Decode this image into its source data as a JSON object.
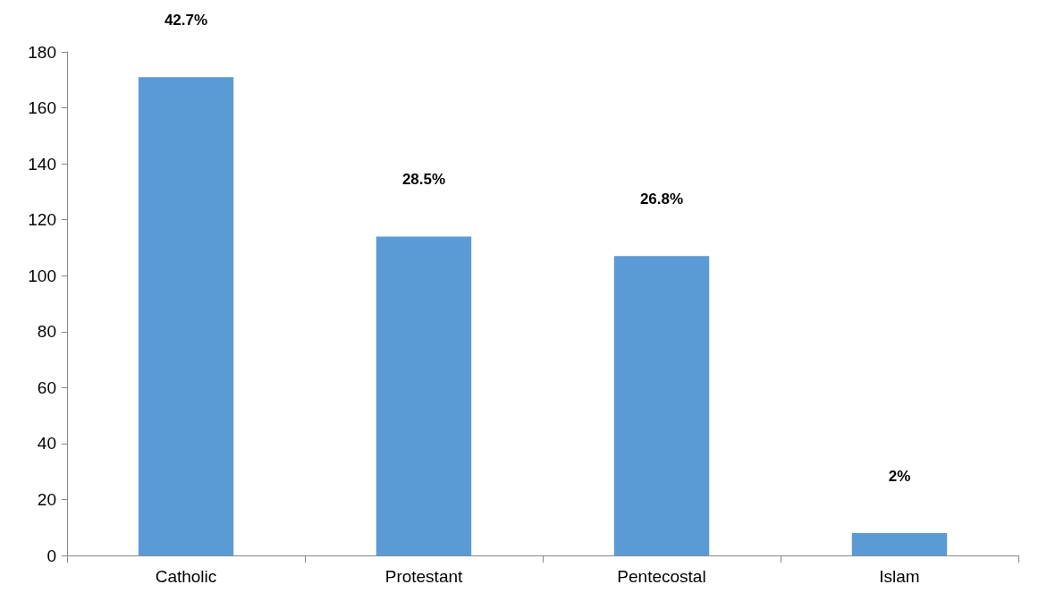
{
  "chart_data": {
    "type": "bar",
    "categories": [
      "Catholic",
      "Protestant",
      "Pentecostal",
      "Islam"
    ],
    "values": [
      171,
      114,
      107,
      8
    ],
    "annotations": [
      "42.7%",
      "28.5%",
      "26.8%",
      "2%"
    ],
    "color": "#5b9bd5",
    "ylim": [
      0,
      180
    ],
    "yticks": [
      0,
      20,
      40,
      60,
      80,
      100,
      120,
      140,
      160,
      180
    ],
    "grid": false
  }
}
